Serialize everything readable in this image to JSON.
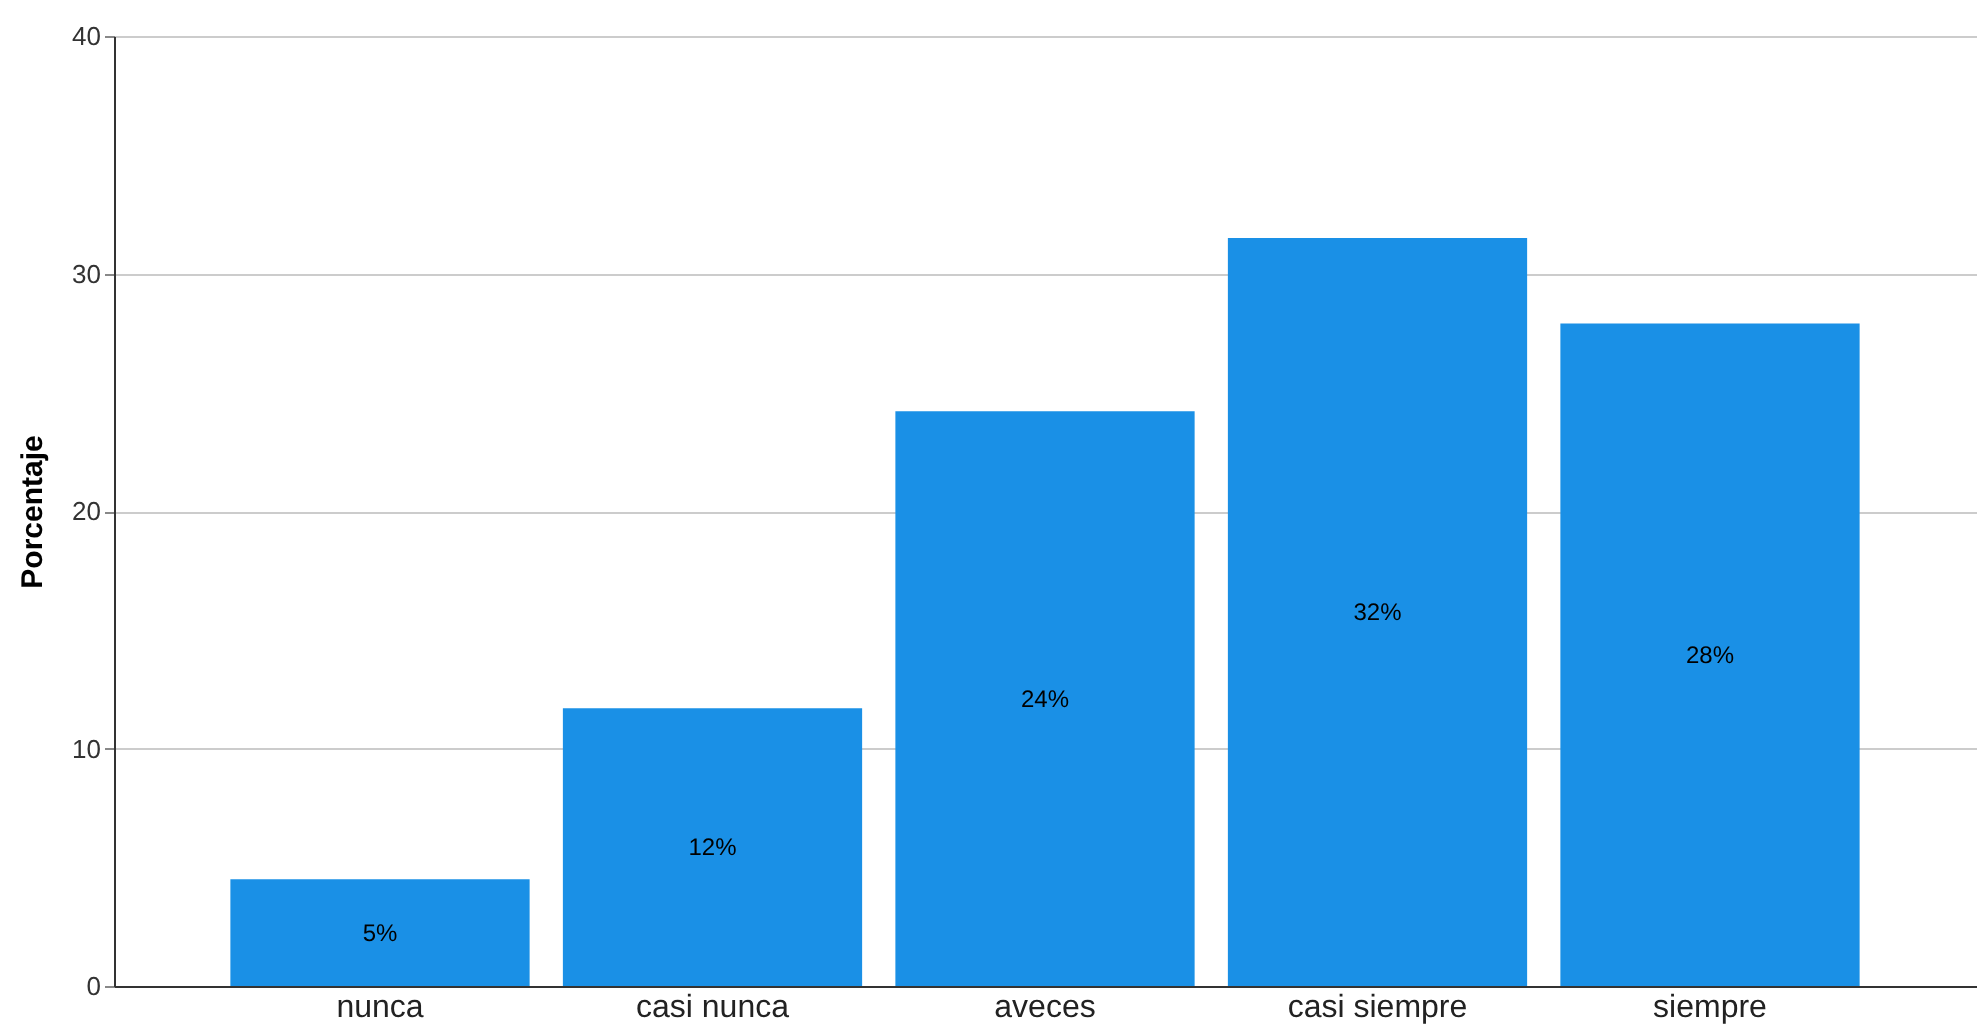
{
  "chart_data": {
    "type": "bar",
    "ylabel": "Porcentaje",
    "categories": [
      "nunca",
      "casi nunca",
      "aveces",
      "casi siempre",
      "siempre"
    ],
    "values": [
      4.5,
      11.7,
      24.2,
      31.5,
      27.9
    ],
    "value_labels": [
      "5%",
      "12%",
      "24%",
      "32%",
      "28%"
    ],
    "color": "#1a90e6",
    "ylim": [
      0,
      40
    ],
    "yticks": [
      0,
      10,
      20,
      30,
      40
    ],
    "grid": "y"
  }
}
